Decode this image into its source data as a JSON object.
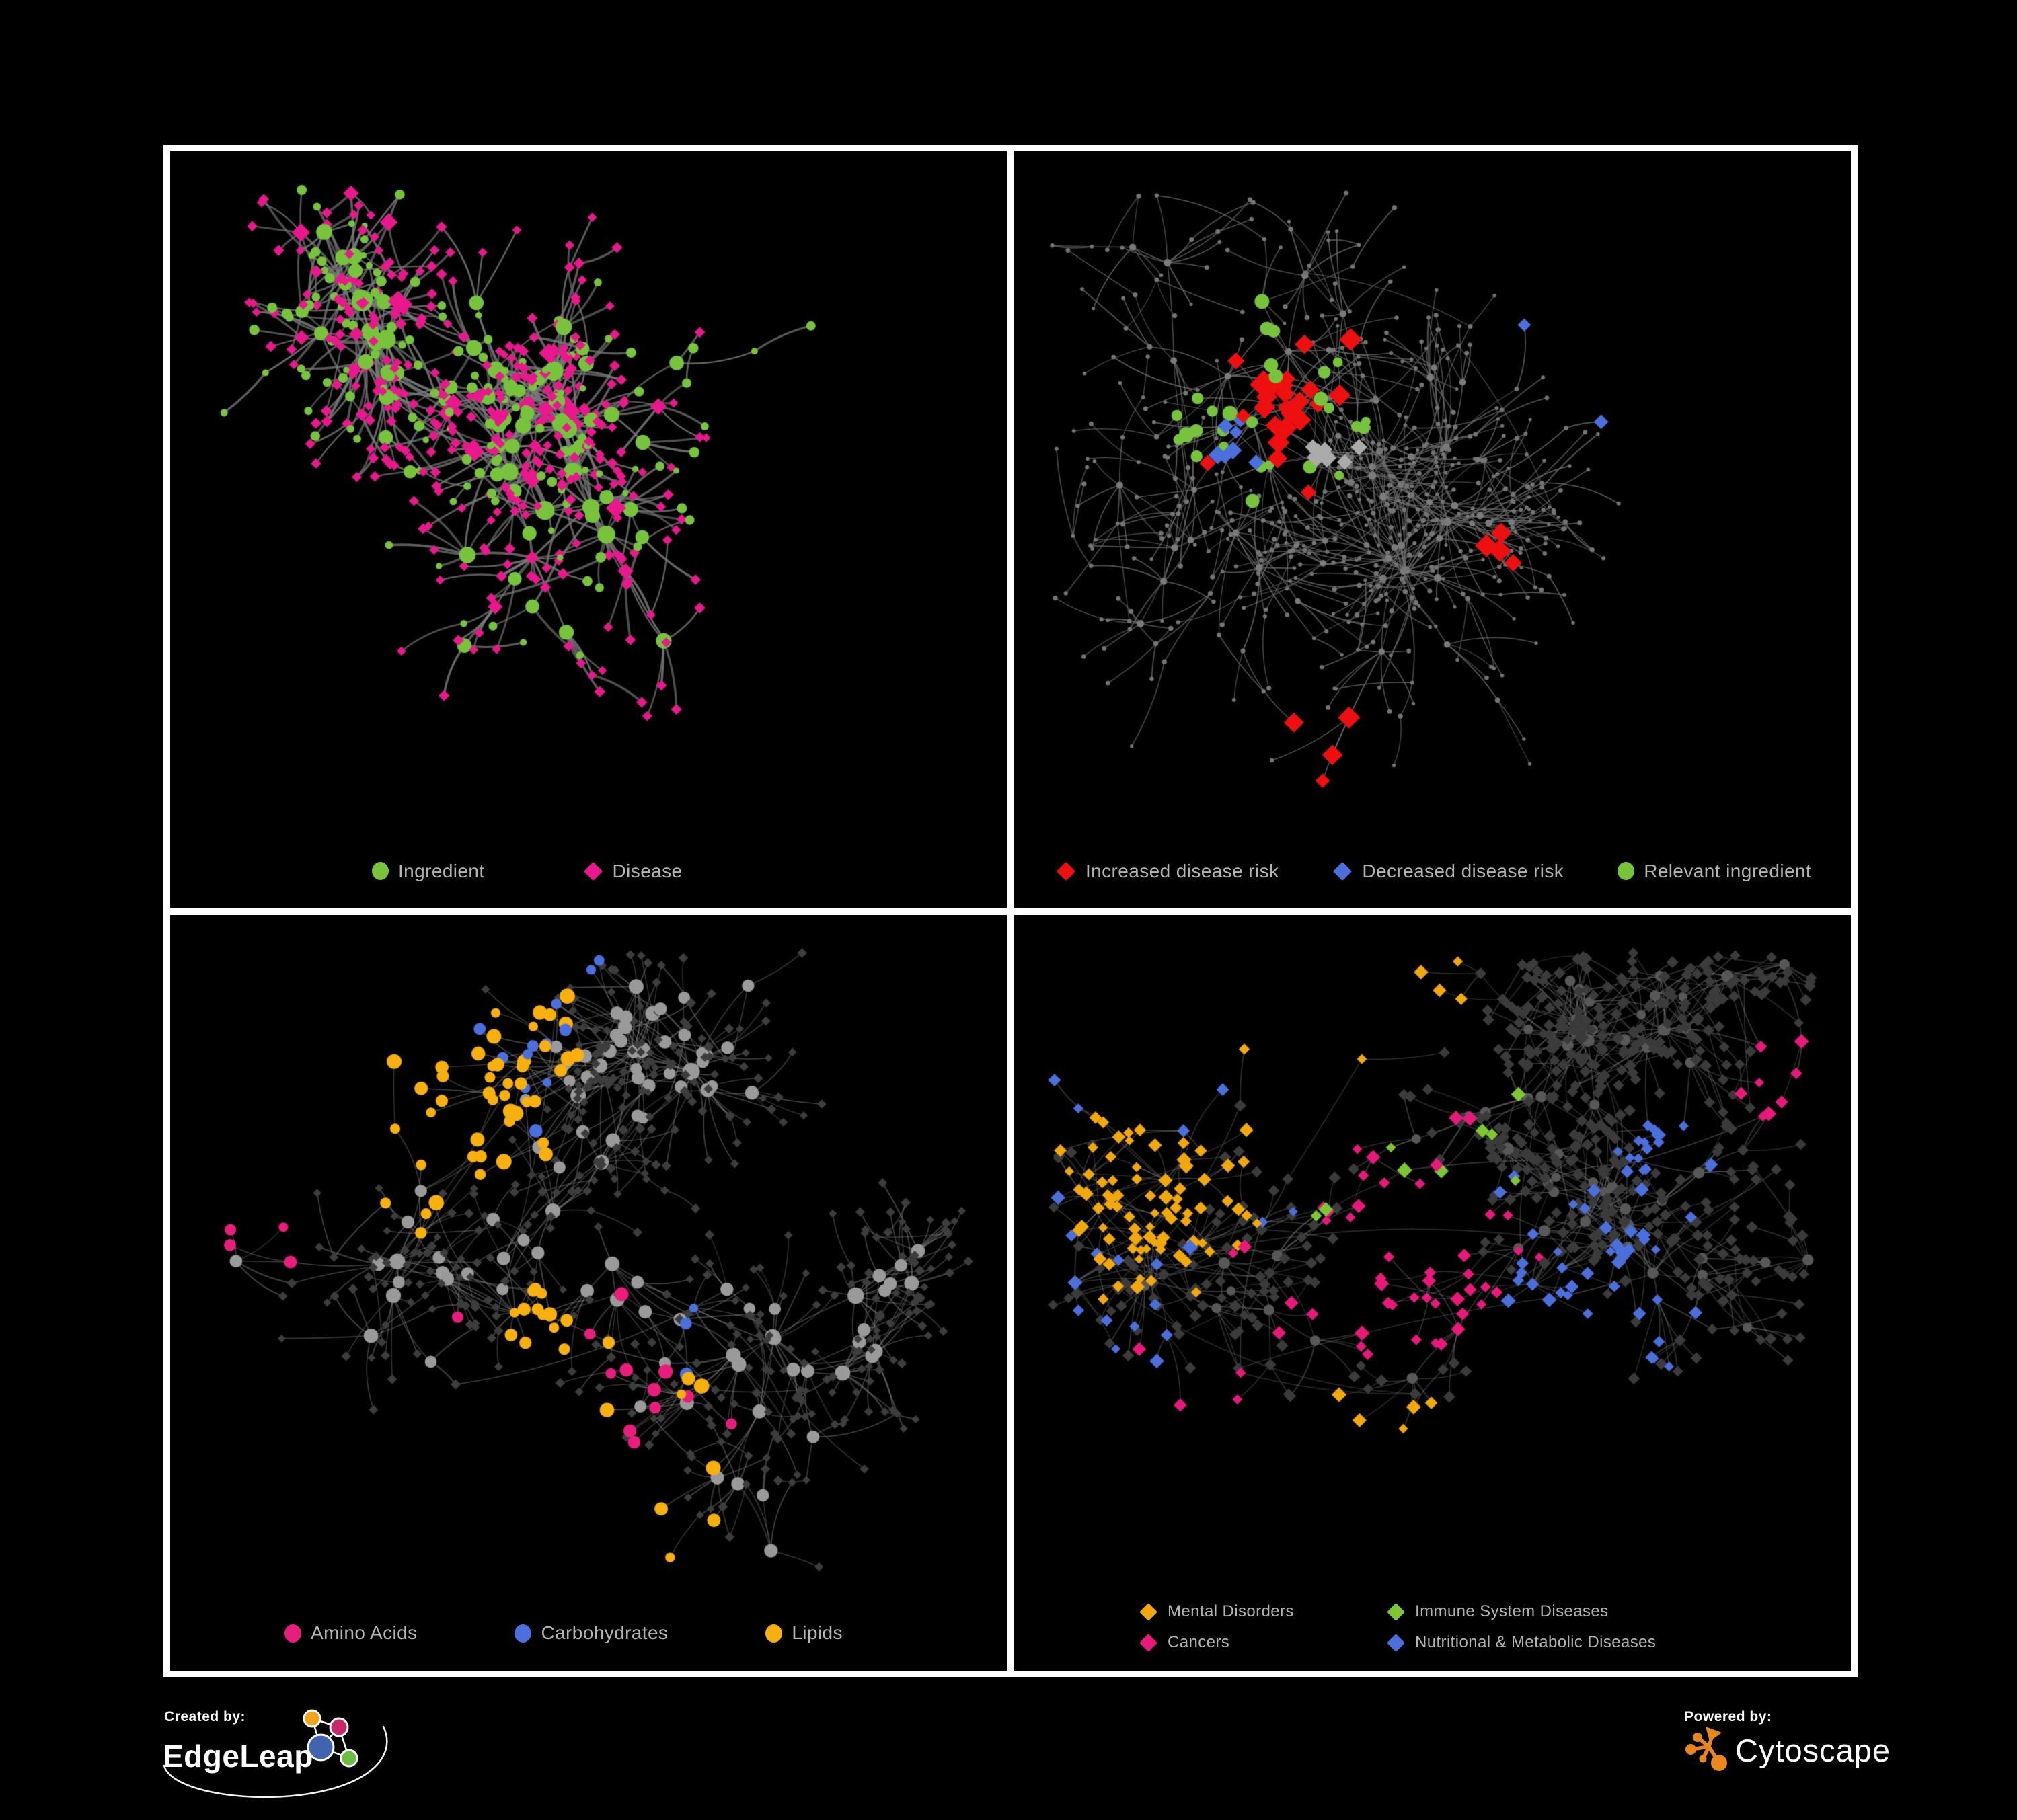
{
  "meta": {
    "background": "#000000",
    "frame_color": "#ffffff",
    "legend_text_color": "#b4b4b4"
  },
  "panels": [
    {
      "name": "ingredient-disease",
      "legend_items": [
        {
          "label": "Ingredient",
          "shape": "circle",
          "color": "#77c43c"
        },
        {
          "label": "Disease",
          "shape": "diamond",
          "color": "#e9188c"
        }
      ],
      "network": {
        "seed": 11,
        "nodes": 560,
        "roots": 7,
        "pref": 1.35,
        "spread": 1.0,
        "cross": 0.02,
        "hubDeg": 3,
        "bottomClear": 130,
        "edge": {
          "color": "#7b7b7b",
          "width": 3.0,
          "alpha": 0.85
        },
        "leaf": {
          "shape": "diamond",
          "color": "#e9188c",
          "rmin": 4.6,
          "rmax": 6.5,
          "alt": {
            "shape": "circle",
            "color": "#77c43c",
            "ratio": 0.3,
            "r": 6
          }
        },
        "hub": {
          "shape": "circle",
          "color": "#77c43c",
          "rmin": 6.5,
          "rmax": 15,
          "alt": {
            "shape": "diamond",
            "color": "#e9188c",
            "ratio": 0.3,
            "r": 8.5
          }
        },
        "groups": []
      }
    },
    {
      "name": "disease-risk",
      "legend_items": [
        {
          "label": "Increased disease risk",
          "shape": "diamond",
          "color": "#ee1010"
        },
        {
          "label": "Decreased disease risk",
          "shape": "diamond",
          "color": "#4b70dd"
        },
        {
          "label": "Relevant ingredient",
          "shape": "circle",
          "color": "#77c43c"
        }
      ],
      "network": {
        "seed": 23,
        "nodes": 680,
        "roots": 8,
        "pref": 1.3,
        "spread": 1.18,
        "cross": 0.03,
        "hubDeg": 5,
        "bottomClear": 130,
        "edge": {
          "color": "#6e6e6e",
          "width": 1.5,
          "alpha": 0.85
        },
        "leaf": {
          "shape": "circle",
          "color": "#747474",
          "rmin": 2.2,
          "rmax": 3.6
        },
        "hub": {
          "shape": "circle",
          "color": "#7b7b7b",
          "rmin": 3.0,
          "rmax": 5.2
        },
        "groups": [
          {
            "shape": "diamond",
            "color": "#ee1010",
            "count": 26,
            "focus": [
              0.31,
              0.33
            ],
            "jit": 1.5,
            "r": 10
          },
          {
            "shape": "diamond",
            "color": "#ee1010",
            "count": 5,
            "focus": [
              0.57,
              0.52
            ],
            "jit": 0.8,
            "r": 10
          },
          {
            "shape": "diamond",
            "color": "#ee1010",
            "count": 4,
            "focus": [
              0.4,
              0.84
            ],
            "jit": 0.5,
            "r": 10
          },
          {
            "shape": "diamond",
            "color": "#4b70dd",
            "count": 7,
            "focus": [
              0.27,
              0.38
            ],
            "jit": 0.5,
            "r": 8.5
          },
          {
            "shape": "diamond",
            "color": "#4b70dd",
            "count": 2,
            "focus": [
              0.87,
              0.17
            ],
            "jit": 0.15,
            "r": 8.5
          },
          {
            "shape": "diamond",
            "color": "#ababab",
            "count": 8,
            "focus": [
              0.36,
              0.4
            ],
            "jit": 1.3,
            "r": 8.5
          },
          {
            "shape": "circle",
            "color": "#77c43c",
            "count": 28,
            "focus": [
              0.3,
              0.34
            ],
            "jit": 1.6,
            "r": 9
          }
        ]
      }
    },
    {
      "name": "nutrients",
      "legend_items": [
        {
          "label": "Amino Acids",
          "shape": "circle",
          "color": "#e91d7c"
        },
        {
          "label": "Carbohydrates",
          "shape": "circle",
          "color": "#4b70dd"
        },
        {
          "label": "Lipids",
          "shape": "circle",
          "color": "#f7b00d"
        }
      ],
      "network": {
        "seed": 37,
        "nodes": 620,
        "roots": 7,
        "pref": 1.3,
        "spread": 1.05,
        "cross": 0.025,
        "hubDeg": 3,
        "bottomClear": 130,
        "edge": {
          "color": "#8c8c8c",
          "width": 1.6,
          "alpha": 0.5
        },
        "leaf": {
          "shape": "diamond",
          "color": "#3d3d3d",
          "rmin": 4.0,
          "rmax": 5.5
        },
        "hub": {
          "shape": "circle",
          "color": "#9a9a9a",
          "rmin": 6.5,
          "rmax": 12
        },
        "groups": [
          {
            "shape": "circle",
            "color": "#f7b00d",
            "count": 46,
            "focus": [
              0.3,
              0.22
            ],
            "jit": 0.9,
            "r": 9
          },
          {
            "shape": "circle",
            "color": "#f7b00d",
            "count": 12,
            "focus": [
              0.44,
              0.54
            ],
            "jit": 0.35,
            "r": 9
          },
          {
            "shape": "circle",
            "color": "#f7b00d",
            "count": 10,
            "focus": [
              0.45,
              0.8
            ],
            "jit": 1.6,
            "r": 9
          },
          {
            "shape": "circle",
            "color": "#4b70dd",
            "count": 12,
            "focus": [
              0.27,
              0.13
            ],
            "jit": 0.8,
            "r": 8
          },
          {
            "shape": "circle",
            "color": "#4b70dd",
            "count": 3,
            "focus": [
              0.62,
              0.55
            ],
            "jit": 1.5,
            "r": 8
          },
          {
            "shape": "circle",
            "color": "#e91d7c",
            "count": 12,
            "focus": [
              0.45,
              0.72
            ],
            "jit": 2.4,
            "r": 8.5
          },
          {
            "shape": "circle",
            "color": "#e91d7c",
            "count": 4,
            "focus": [
              0.11,
              0.4
            ],
            "jit": 0.7,
            "r": 8.5
          }
        ]
      }
    },
    {
      "name": "disease-categories",
      "legend_items": [
        {
          "label": "Mental Disorders",
          "shape": "diamond",
          "color": "#f0a80d"
        },
        {
          "label": "Immune System Diseases",
          "shape": "diamond",
          "color": "#7dc832"
        },
        {
          "label": "Cancers",
          "shape": "diamond",
          "color": "#e9197c"
        },
        {
          "label": "Nutritional & Metabolic Diseases",
          "shape": "diamond",
          "color": "#4b70dd"
        }
      ],
      "network": {
        "seed": 53,
        "nodes": 800,
        "roots": 8,
        "pref": 1.32,
        "spread": 1.0,
        "cross": 0.03,
        "hubDeg": 5,
        "bottomClear": 150,
        "edge": {
          "color": "#8a8a8a",
          "width": 1.5,
          "alpha": 0.42
        },
        "leaf": {
          "shape": "diamond",
          "color": "#3b3b3b",
          "rmin": 5.2,
          "rmax": 6.8
        },
        "hub": {
          "shape": "circle",
          "color": "#585858",
          "rmin": 4.5,
          "rmax": 9
        },
        "groups": [
          {
            "shape": "diamond",
            "color": "#f0a80d",
            "count": 80,
            "focus": [
              0.16,
              0.36
            ],
            "jit": 0.55,
            "r": 6.6
          },
          {
            "shape": "diamond",
            "color": "#f0a80d",
            "count": 6,
            "focus": [
              0.35,
              0.06
            ],
            "jit": 0.4,
            "r": 6.6
          },
          {
            "shape": "diamond",
            "color": "#f0a80d",
            "count": 5,
            "focus": [
              0.5,
              0.78
            ],
            "jit": 0.8,
            "r": 6.6
          },
          {
            "shape": "diamond",
            "color": "#e9197c",
            "count": 46,
            "focus": [
              0.47,
              0.47
            ],
            "jit": 0.8,
            "r": 6.6
          },
          {
            "shape": "diamond",
            "color": "#e9197c",
            "count": 8,
            "focus": [
              0.93,
              0.22
            ],
            "jit": 0.3,
            "r": 6.6
          },
          {
            "shape": "diamond",
            "color": "#e9197c",
            "count": 5,
            "focus": [
              0.25,
              0.85
            ],
            "jit": 0.5,
            "r": 6.6
          },
          {
            "shape": "diamond",
            "color": "#4b70dd",
            "count": 38,
            "focus": [
              0.66,
              0.55
            ],
            "jit": 0.9,
            "r": 6.6
          },
          {
            "shape": "diamond",
            "color": "#4b70dd",
            "count": 18,
            "focus": [
              0.78,
              0.3
            ],
            "jit": 0.9,
            "r": 6.6
          },
          {
            "shape": "diamond",
            "color": "#4b70dd",
            "count": 12,
            "focus": [
              0.2,
              0.07
            ],
            "jit": 0.8,
            "r": 6.6
          },
          {
            "shape": "diamond",
            "color": "#4b70dd",
            "count": 8,
            "focus": [
              0.08,
              0.75
            ],
            "jit": 0.7,
            "r": 6.6
          },
          {
            "shape": "diamond",
            "color": "#7dc832",
            "count": 9,
            "focus": [
              0.45,
              0.32
            ],
            "jit": 2.0,
            "r": 6.6
          }
        ]
      }
    }
  ],
  "footer": {
    "created_by_label": "Created by:",
    "created_by_brand": "EdgeLeap",
    "powered_by_label": "Powered by:",
    "powered_by_brand": "Cytoscape",
    "edgeleap_colors": {
      "orange": "#f2a51c",
      "pink": "#c62969",
      "blue": "#4064b0",
      "green": "#6cbe45"
    },
    "cytoscape_color": "#e8871e"
  }
}
